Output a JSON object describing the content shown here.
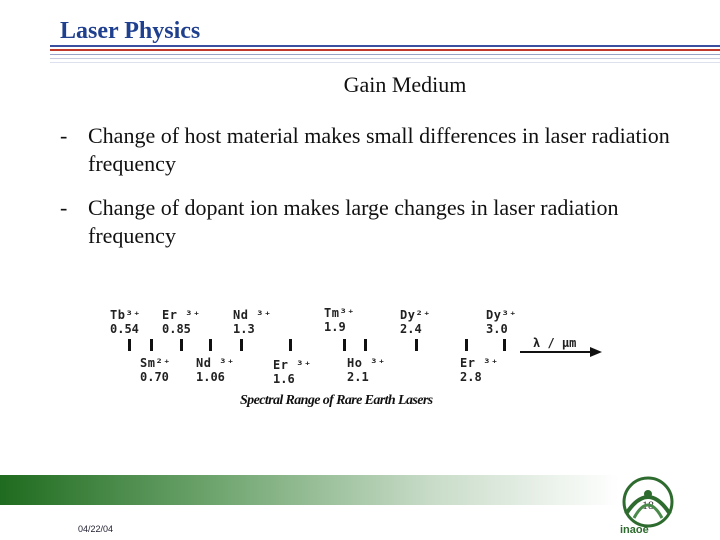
{
  "slide": {
    "title": "Laser Physics",
    "subtitle": "Gain Medium",
    "bullets": [
      {
        "marker": "-",
        "text": "Change of host material makes small differences in laser radiation frequency"
      },
      {
        "marker": "-",
        "text": "Change of dopant ion makes large changes in laser radiation frequency"
      }
    ]
  },
  "figure": {
    "caption": "Spectral Range of Rare Earth Lasers",
    "axis_label": "λ / μm",
    "ions_top": [
      {
        "symbol": "Tb³⁺",
        "wavelength": "0.54"
      },
      {
        "symbol": "Er ³⁺",
        "wavelength": "0.85"
      },
      {
        "symbol": "Nd ³⁺",
        "wavelength": "1.3"
      },
      {
        "symbol": "Tm³⁺",
        "wavelength": "1.9"
      },
      {
        "symbol": "Dy²⁺",
        "wavelength": "2.4"
      },
      {
        "symbol": "Dy³⁺",
        "wavelength": "3.0"
      }
    ],
    "ions_bottom": [
      {
        "symbol": "Sm²⁺",
        "wavelength": "0.70"
      },
      {
        "symbol": "Nd ³⁺",
        "wavelength": "1.06"
      },
      {
        "symbol": "Er ³⁺",
        "wavelength": "1.6"
      },
      {
        "symbol": "Ho ³⁺",
        "wavelength": "2.1"
      },
      {
        "symbol": "Er ³⁺",
        "wavelength": "2.8"
      }
    ]
  },
  "footer": {
    "page_number": "18",
    "date": "04/22/04",
    "logo_text": "inaoe"
  },
  "colors": {
    "title": "#1f3f8f",
    "rule_blue": "#3a4fa0",
    "rule_red": "#c0392b",
    "footer_green": "#2f7d2f",
    "logo_green": "#2e6b2e"
  }
}
